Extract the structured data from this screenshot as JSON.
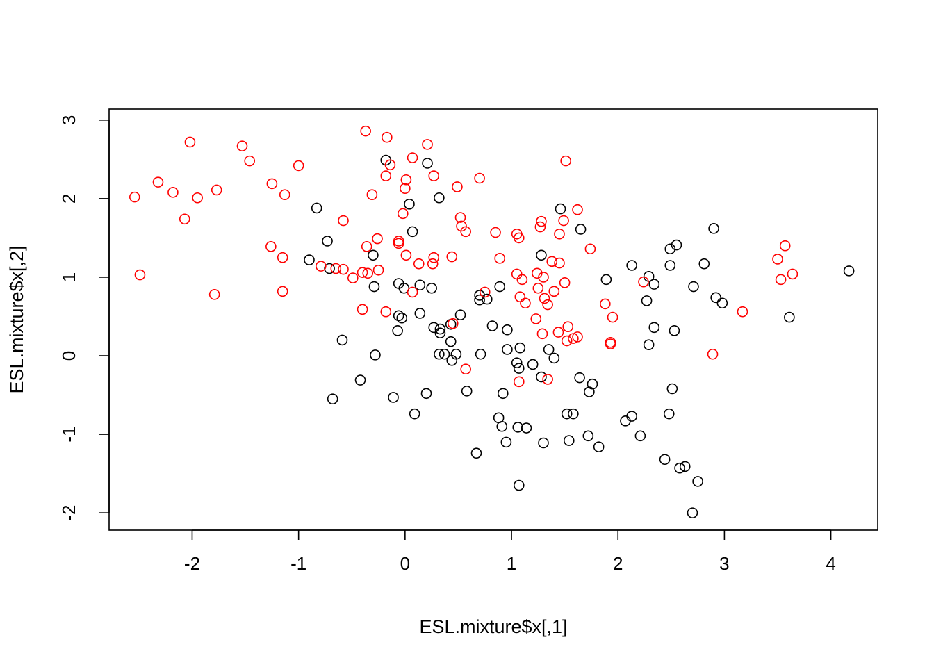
{
  "chart_data": {
    "type": "scatter",
    "title": "",
    "xlabel": "ESL.mixture$x[,1]",
    "ylabel": "ESL.mixture$x[,2]",
    "xlim": [
      -2.78,
      4.44
    ],
    "ylim": [
      -2.22,
      3.14
    ],
    "xticks": [
      -2,
      -1,
      0,
      1,
      2,
      3,
      4
    ],
    "yticks": [
      -2,
      -1,
      0,
      1,
      2,
      3
    ],
    "xtick_labels": [
      "-2",
      "-1",
      "0",
      "1",
      "2",
      "3",
      "4"
    ],
    "ytick_labels": [
      "-2",
      "-1",
      "0",
      "1",
      "2",
      "3"
    ],
    "grid": false,
    "legend": "none",
    "series": [
      {
        "color": "#000000",
        "points": [
          [
            -0.18,
            2.49
          ],
          [
            0.21,
            2.45
          ],
          [
            0.32,
            2.01
          ],
          [
            0.04,
            1.93
          ],
          [
            -0.83,
            1.88
          ],
          [
            1.46,
            1.87
          ],
          [
            0.07,
            1.58
          ],
          [
            1.65,
            1.61
          ],
          [
            2.9,
            1.62
          ],
          [
            -0.73,
            1.46
          ],
          [
            2.55,
            1.41
          ],
          [
            2.49,
            1.36
          ],
          [
            1.28,
            1.28
          ],
          [
            -0.3,
            1.28
          ],
          [
            -0.9,
            1.22
          ],
          [
            2.13,
            1.15
          ],
          [
            2.49,
            1.15
          ],
          [
            2.81,
            1.17
          ],
          [
            4.17,
            1.08
          ],
          [
            -0.71,
            1.11
          ],
          [
            2.29,
            1.01
          ],
          [
            1.89,
            0.97
          ],
          [
            2.34,
            0.91
          ],
          [
            -0.06,
            0.92
          ],
          [
            0.14,
            0.9
          ],
          [
            -0.29,
            0.88
          ],
          [
            0.25,
            0.86
          ],
          [
            -0.01,
            0.86
          ],
          [
            0.89,
            0.88
          ],
          [
            2.71,
            0.88
          ],
          [
            0.7,
            0.77
          ],
          [
            0.7,
            0.71
          ],
          [
            0.77,
            0.72
          ],
          [
            2.92,
            0.74
          ],
          [
            2.98,
            0.67
          ],
          [
            2.27,
            0.7
          ],
          [
            -0.06,
            0.51
          ],
          [
            -0.03,
            0.48
          ],
          [
            0.14,
            0.54
          ],
          [
            0.52,
            0.52
          ],
          [
            3.61,
            0.49
          ],
          [
            0.43,
            0.4
          ],
          [
            0.82,
            0.38
          ],
          [
            0.27,
            0.36
          ],
          [
            0.33,
            0.34
          ],
          [
            0.33,
            0.29
          ],
          [
            0.96,
            0.33
          ],
          [
            2.34,
            0.36
          ],
          [
            2.53,
            0.32
          ],
          [
            -0.07,
            0.32
          ],
          [
            0.43,
            0.18
          ],
          [
            1.35,
            0.08
          ],
          [
            0.96,
            0.08
          ],
          [
            1.08,
            0.1
          ],
          [
            -0.59,
            0.2
          ],
          [
            2.29,
            0.14
          ],
          [
            0.32,
            0.02
          ],
          [
            0.37,
            0.02
          ],
          [
            0.48,
            0.02
          ],
          [
            0.71,
            0.02
          ],
          [
            -0.28,
            0.01
          ],
          [
            0.44,
            -0.06
          ],
          [
            1.05,
            -0.09
          ],
          [
            1.2,
            -0.11
          ],
          [
            1.07,
            -0.16
          ],
          [
            1.4,
            -0.03
          ],
          [
            1.28,
            -0.27
          ],
          [
            1.64,
            -0.28
          ],
          [
            1.76,
            -0.36
          ],
          [
            -0.42,
            -0.31
          ],
          [
            0.58,
            -0.45
          ],
          [
            0.2,
            -0.48
          ],
          [
            -0.68,
            -0.55
          ],
          [
            -0.11,
            -0.53
          ],
          [
            0.92,
            -0.48
          ],
          [
            1.73,
            -0.46
          ],
          [
            2.51,
            -0.42
          ],
          [
            0.09,
            -0.74
          ],
          [
            1.52,
            -0.74
          ],
          [
            1.58,
            -0.74
          ],
          [
            2.48,
            -0.74
          ],
          [
            0.88,
            -0.79
          ],
          [
            2.13,
            -0.77
          ],
          [
            2.07,
            -0.83
          ],
          [
            0.91,
            -0.9
          ],
          [
            1.06,
            -0.91
          ],
          [
            1.14,
            -0.92
          ],
          [
            1.72,
            -1.02
          ],
          [
            2.21,
            -1.02
          ],
          [
            0.95,
            -1.1
          ],
          [
            1.54,
            -1.08
          ],
          [
            1.3,
            -1.11
          ],
          [
            1.82,
            -1.16
          ],
          [
            0.67,
            -1.24
          ],
          [
            2.44,
            -1.32
          ],
          [
            2.58,
            -1.43
          ],
          [
            2.63,
            -1.41
          ],
          [
            2.75,
            -1.6
          ],
          [
            1.07,
            -1.65
          ],
          [
            2.7,
            -2.0
          ]
        ]
      },
      {
        "color": "#ff0000",
        "points": [
          [
            -0.37,
            2.86
          ],
          [
            -0.17,
            2.78
          ],
          [
            -2.02,
            2.72
          ],
          [
            -1.53,
            2.67
          ],
          [
            0.21,
            2.69
          ],
          [
            0.07,
            2.52
          ],
          [
            -1.46,
            2.48
          ],
          [
            -0.14,
            2.43
          ],
          [
            1.51,
            2.48
          ],
          [
            -1.0,
            2.42
          ],
          [
            0.27,
            2.29
          ],
          [
            -0.18,
            2.29
          ],
          [
            0.01,
            2.24
          ],
          [
            0.7,
            2.26
          ],
          [
            -2.32,
            2.21
          ],
          [
            -1.25,
            2.19
          ],
          [
            0.49,
            2.15
          ],
          [
            0.0,
            2.13
          ],
          [
            -1.77,
            2.11
          ],
          [
            -2.18,
            2.08
          ],
          [
            -1.13,
            2.05
          ],
          [
            -0.31,
            2.05
          ],
          [
            -2.54,
            2.02
          ],
          [
            -1.95,
            2.01
          ],
          [
            -0.02,
            1.81
          ],
          [
            1.62,
            1.86
          ],
          [
            0.52,
            1.76
          ],
          [
            -2.07,
            1.74
          ],
          [
            -0.58,
            1.72
          ],
          [
            1.28,
            1.71
          ],
          [
            1.49,
            1.72
          ],
          [
            0.53,
            1.65
          ],
          [
            1.27,
            1.64
          ],
          [
            0.57,
            1.58
          ],
          [
            0.85,
            1.57
          ],
          [
            1.05,
            1.55
          ],
          [
            1.45,
            1.55
          ],
          [
            1.07,
            1.5
          ],
          [
            -0.26,
            1.49
          ],
          [
            -0.06,
            1.46
          ],
          [
            -0.06,
            1.43
          ],
          [
            -1.26,
            1.39
          ],
          [
            -0.36,
            1.39
          ],
          [
            1.74,
            1.36
          ],
          [
            0.01,
            1.28
          ],
          [
            -1.15,
            1.25
          ],
          [
            0.27,
            1.25
          ],
          [
            0.44,
            1.26
          ],
          [
            0.89,
            1.24
          ],
          [
            1.38,
            1.2
          ],
          [
            1.45,
            1.18
          ],
          [
            0.26,
            1.17
          ],
          [
            0.13,
            1.17
          ],
          [
            -0.79,
            1.14
          ],
          [
            -0.65,
            1.11
          ],
          [
            -0.25,
            1.09
          ],
          [
            -0.58,
            1.1
          ],
          [
            -0.4,
            1.06
          ],
          [
            -0.35,
            1.05
          ],
          [
            1.05,
            1.04
          ],
          [
            1.24,
            1.05
          ],
          [
            -2.49,
            1.03
          ],
          [
            -0.49,
            0.99
          ],
          [
            1.3,
            1.0
          ],
          [
            1.1,
            0.97
          ],
          [
            1.5,
            0.93
          ],
          [
            2.24,
            0.94
          ],
          [
            3.5,
            1.23
          ],
          [
            3.57,
            1.4
          ],
          [
            3.64,
            1.04
          ],
          [
            3.53,
            0.97
          ],
          [
            1.25,
            0.86
          ],
          [
            1.4,
            0.82
          ],
          [
            0.75,
            0.81
          ],
          [
            -1.15,
            0.82
          ],
          [
            0.07,
            0.81
          ],
          [
            -1.79,
            0.78
          ],
          [
            1.08,
            0.75
          ],
          [
            1.31,
            0.73
          ],
          [
            1.13,
            0.67
          ],
          [
            1.34,
            0.65
          ],
          [
            1.88,
            0.66
          ],
          [
            -0.4,
            0.59
          ],
          [
            -0.18,
            0.56
          ],
          [
            3.17,
            0.56
          ],
          [
            1.95,
            0.49
          ],
          [
            1.23,
            0.47
          ],
          [
            0.45,
            0.41
          ],
          [
            1.44,
            0.3
          ],
          [
            1.53,
            0.37
          ],
          [
            1.29,
            0.28
          ],
          [
            1.58,
            0.22
          ],
          [
            1.62,
            0.24
          ],
          [
            1.52,
            0.19
          ],
          [
            1.93,
            0.15
          ],
          [
            1.93,
            0.17
          ],
          [
            2.89,
            0.02
          ],
          [
            0.57,
            -0.17
          ],
          [
            1.07,
            -0.33
          ],
          [
            1.34,
            -0.3
          ]
        ]
      }
    ]
  }
}
